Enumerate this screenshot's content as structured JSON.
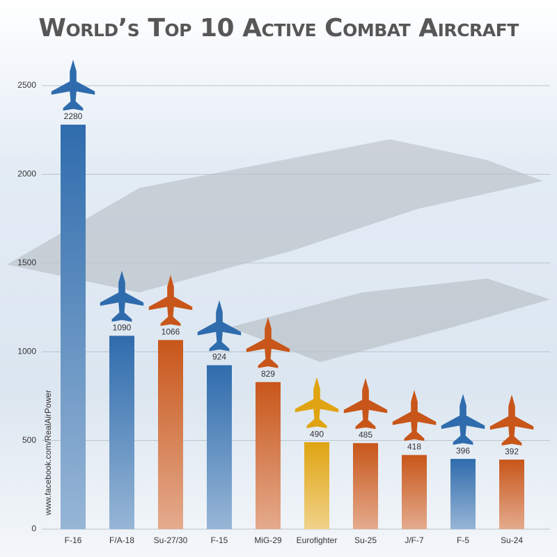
{
  "chart_data": {
    "type": "bar",
    "title": "World’s Top 10 Active Combat Aircraft",
    "watermark": "www.facebook.com/RealAirPower",
    "categories": [
      "F-16",
      "F/A-18",
      "Su-27/30",
      "F-15",
      "MiG-29",
      "Eurofighter",
      "Su-25",
      "J/F-7",
      "F-5",
      "Su-24"
    ],
    "values": [
      2280,
      1090,
      1066,
      924,
      829,
      490,
      485,
      418,
      396,
      392
    ],
    "colors": [
      "#2f6cad",
      "#2f6cad",
      "#c8561a",
      "#2f6cad",
      "#c8561a",
      "#e0a412",
      "#c8561a",
      "#c8561a",
      "#2f6cad",
      "#c8561a"
    ],
    "ylim": [
      0,
      2500
    ],
    "yticks": [
      0,
      500,
      1000,
      1500,
      2000,
      2500
    ],
    "grid": true
  }
}
